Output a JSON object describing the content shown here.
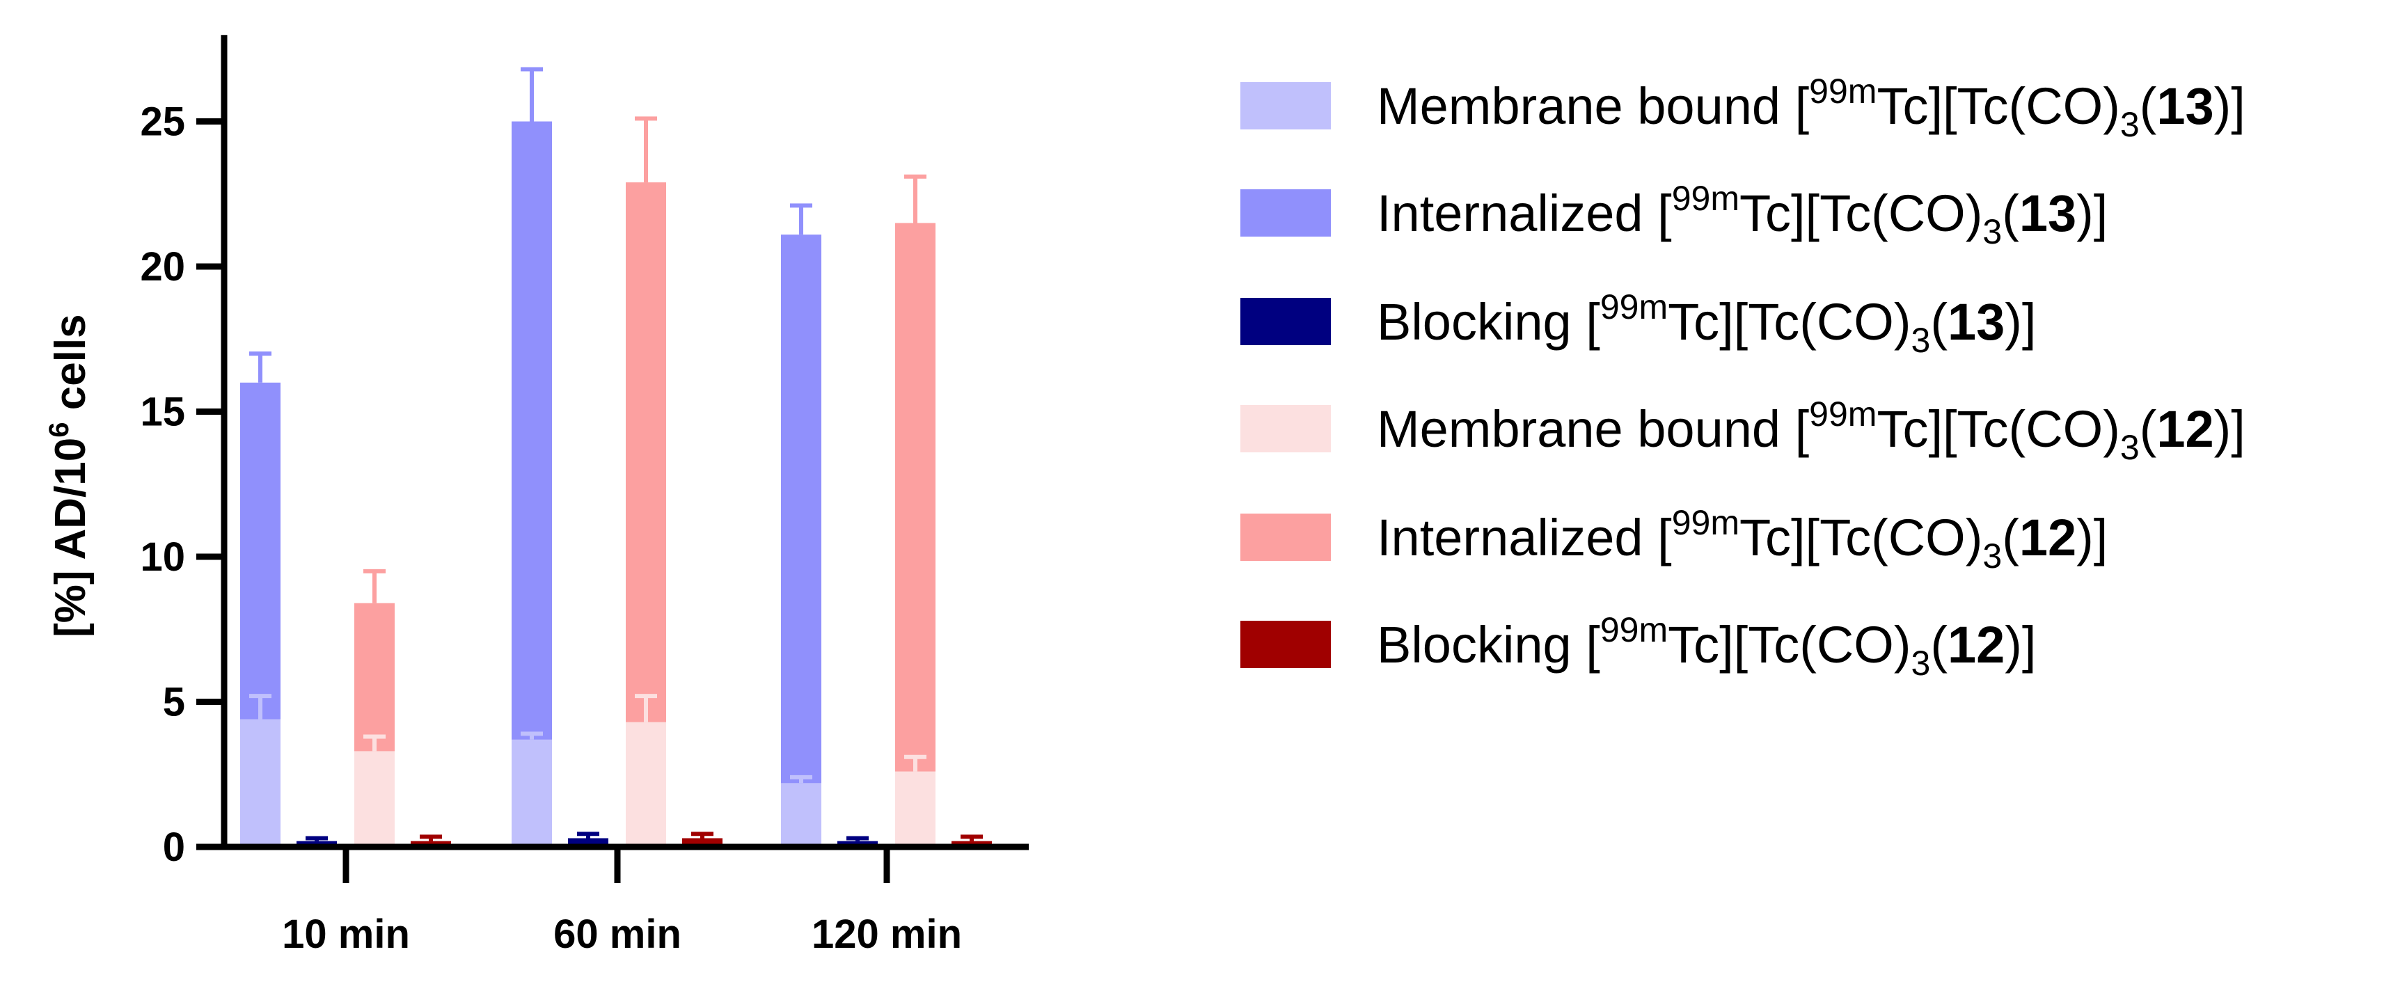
{
  "chart_data": {
    "type": "bar",
    "stacked_within_compound": true,
    "categories": [
      "10 min",
      "60 min",
      "120 min"
    ],
    "ylabel": {
      "text": "[%] AD/10",
      "superscript": "6",
      "suffix": " cells"
    },
    "ylim": [
      0,
      27.5
    ],
    "yticks": [
      0,
      5,
      10,
      15,
      20,
      25
    ],
    "ytick_labels": [
      "0",
      "5",
      "10",
      "15",
      "20",
      "25"
    ],
    "grid": false,
    "legend_position": "right",
    "colors": {
      "membrane_13": "#c0c0fc",
      "internalized_13": "#9090fc",
      "blocking_13": "#000080",
      "membrane_12": "#fce0e0",
      "internalized_12": "#fca0a0",
      "blocking_12": "#a00000"
    },
    "series": [
      {
        "id": "membrane_13",
        "legend": {
          "prefix": "Membrane bound [",
          "sup": "99m",
          "mid": "Tc][Tc(CO)",
          "sub": "3",
          "open": "(",
          "bold": "13",
          "close": ")]"
        },
        "values": [
          4.4,
          3.7,
          2.2
        ],
        "errors": [
          0.8,
          0.2,
          0.2
        ]
      },
      {
        "id": "internalized_13",
        "legend": {
          "prefix": "Internalized [",
          "sup": "99m",
          "mid": "Tc][Tc(CO)",
          "sub": "3",
          "open": "(",
          "bold": "13",
          "close": ")]"
        },
        "values": [
          16.0,
          25.0,
          21.1
        ],
        "errors": [
          1.0,
          1.8,
          1.0
        ]
      },
      {
        "id": "blocking_13",
        "legend": {
          "prefix": "Blocking [",
          "sup": "99m",
          "mid": "Tc][Tc(CO)",
          "sub": "3",
          "open": "(",
          "bold": "13",
          "close": ")]"
        },
        "values": [
          0.2,
          0.3,
          0.2
        ],
        "errors": [
          0.1,
          0.15,
          0.1
        ]
      },
      {
        "id": "membrane_12",
        "legend": {
          "prefix": "Membrane bound [",
          "sup": "99m",
          "mid": "Tc][Tc(CO)",
          "sub": "3",
          "open": "(",
          "bold": "12",
          "close": ")]"
        },
        "values": [
          3.3,
          4.3,
          2.6
        ],
        "errors": [
          0.5,
          0.9,
          0.5
        ]
      },
      {
        "id": "internalized_12",
        "legend": {
          "prefix": "Internalized [",
          "sup": "99m",
          "mid": "Tc][Tc(CO)",
          "sub": "3",
          "open": "(",
          "bold": "12",
          "close": ")]"
        },
        "values": [
          8.4,
          22.9,
          21.5
        ],
        "errors": [
          1.1,
          2.2,
          1.6
        ]
      },
      {
        "id": "blocking_12",
        "legend": {
          "prefix": "Blocking [",
          "sup": "99m",
          "mid": "Tc][Tc(CO)",
          "sub": "3",
          "open": "(",
          "bold": "12",
          "close": ")]"
        },
        "values": [
          0.2,
          0.3,
          0.2
        ],
        "errors": [
          0.15,
          0.15,
          0.15
        ]
      }
    ]
  }
}
